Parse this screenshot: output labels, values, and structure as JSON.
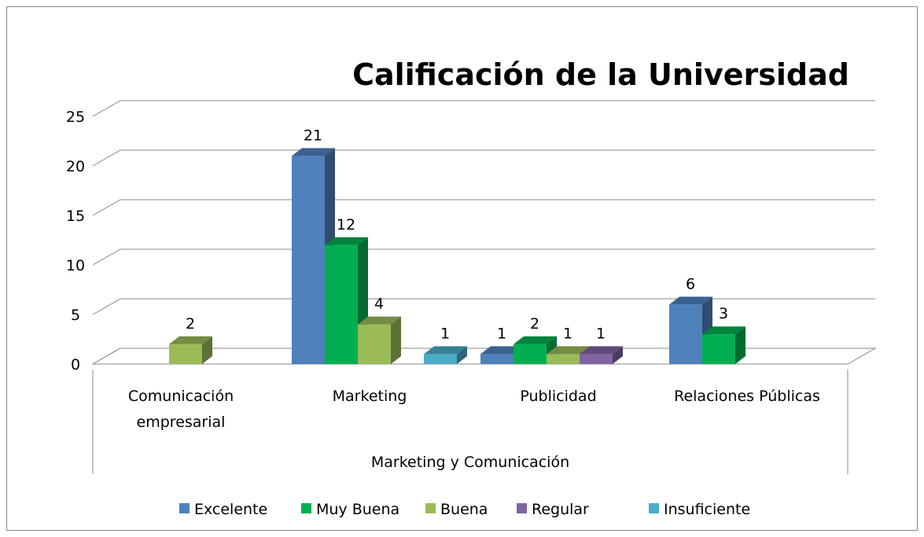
{
  "chart_data": {
    "type": "bar3d",
    "title": "Calificación de la Universidad",
    "xlabel": "Marketing y Comunicación",
    "categories": [
      "Comunicación empresarial",
      "Marketing",
      "Publicidad",
      "Relaciones Públicas"
    ],
    "series": [
      {
        "name": "Excelente",
        "color": "#4f81bd",
        "values": [
          null,
          21,
          1,
          6
        ]
      },
      {
        "name": "Muy Buena",
        "color": "#00b050",
        "values": [
          null,
          12,
          2,
          3
        ]
      },
      {
        "name": "Buena",
        "color": "#9bbb59",
        "values": [
          2,
          4,
          1,
          null
        ]
      },
      {
        "name": "Regular",
        "color": "#8064a2",
        "values": [
          null,
          null,
          1,
          null
        ]
      },
      {
        "name": "Insuficiente",
        "color": "#4bacc6",
        "values": [
          null,
          1,
          null,
          null
        ]
      }
    ],
    "ylim": [
      0,
      25
    ],
    "yticks": [
      0,
      5,
      10,
      15,
      20,
      25
    ],
    "grid": true,
    "legend": "bottom"
  }
}
